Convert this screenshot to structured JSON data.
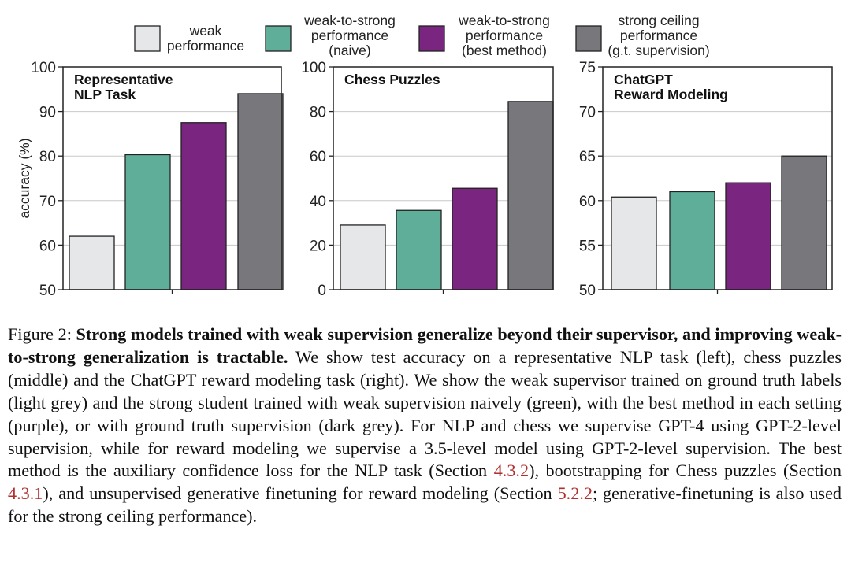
{
  "legend": [
    {
      "label_lines": [
        "weak",
        "performance"
      ],
      "color": "#e6e7e9"
    },
    {
      "label_lines": [
        "weak-to-strong",
        "performance",
        "(naive)"
      ],
      "color": "#5fae9a"
    },
    {
      "label_lines": [
        "weak-to-strong",
        "performance",
        "(best method)"
      ],
      "color": "#7a2580"
    },
    {
      "label_lines": [
        "strong ceiling",
        "performance",
        "(g.t. supervision)"
      ],
      "color": "#77777c"
    }
  ],
  "chart_data": [
    {
      "type": "bar",
      "title_lines": [
        "Representative",
        "NLP Task"
      ],
      "ylabel": "accuracy (%)",
      "ylim": [
        50,
        100
      ],
      "yticks": [
        "50",
        "60",
        "70",
        "80",
        "90",
        "100"
      ],
      "ytick_values": [
        50,
        60,
        70,
        80,
        90,
        100
      ],
      "categories": [
        "weak performance",
        "weak-to-strong performance (naive)",
        "weak-to-strong performance (best method)",
        "strong ceiling performance (g.t. supervision)"
      ],
      "values": [
        62,
        80.3,
        87.5,
        94
      ],
      "colors": [
        "#e6e7e9",
        "#5fae9a",
        "#7a2580",
        "#77777c"
      ]
    },
    {
      "type": "bar",
      "title_lines": [
        "Chess Puzzles"
      ],
      "ylabel": "",
      "ylim": [
        0,
        100
      ],
      "yticks": [
        "0",
        "20",
        "40",
        "60",
        "80",
        "100"
      ],
      "ytick_values": [
        0,
        20,
        40,
        60,
        80,
        100
      ],
      "categories": [
        "weak performance",
        "weak-to-strong performance (naive)",
        "weak-to-strong performance (best method)",
        "strong ceiling performance (g.t. supervision)"
      ],
      "values": [
        29,
        35.6,
        45.5,
        84.5
      ],
      "colors": [
        "#e6e7e9",
        "#5fae9a",
        "#7a2580",
        "#77777c"
      ]
    },
    {
      "type": "bar",
      "title_lines": [
        "ChatGPT",
        "Reward Modeling"
      ],
      "ylabel": "",
      "ylim": [
        50,
        75
      ],
      "yticks": [
        "50",
        "55",
        "60",
        "65",
        "70",
        "75"
      ],
      "ytick_values": [
        50,
        55,
        60,
        65,
        70,
        75
      ],
      "categories": [
        "weak performance",
        "weak-to-strong performance (naive)",
        "weak-to-strong performance (best method)",
        "strong ceiling performance (g.t. supervision)"
      ],
      "values": [
        60.4,
        61,
        62,
        65
      ],
      "colors": [
        "#e6e7e9",
        "#5fae9a",
        "#7a2580",
        "#77777c"
      ]
    }
  ],
  "caption": {
    "label": "Figure 2:",
    "bold": "Strong models trained with weak supervision generalize beyond their supervisor, and improving weak-to-strong generalization is tractable.",
    "p1": "We show test accuracy on a representative NLP task (left), chess puzzles (middle) and the ChatGPT reward modeling task (right). We show the weak supervisor trained on ground truth labels (light grey) and the strong student trained with weak supervision naively (green), with the best method in each setting (purple), or with ground truth supervision (dark grey).  For NLP and chess we supervise GPT-4 using GPT-2-level supervision, while for reward modeling we supervise a 3.5-level model using GPT-2-level supervision. The best method is the auxiliary confidence loss for the NLP task (Section",
    "ref1": "4.3.2",
    "p2": "), bootstrapping for Chess puzzles (Section",
    "ref2": "4.3.1",
    "p3": "), and unsupervised generative finetuning for reward modeling (Section",
    "ref3": "5.2.2",
    "p4": "; generative-finetuning is also used for the strong ceiling performance)."
  }
}
